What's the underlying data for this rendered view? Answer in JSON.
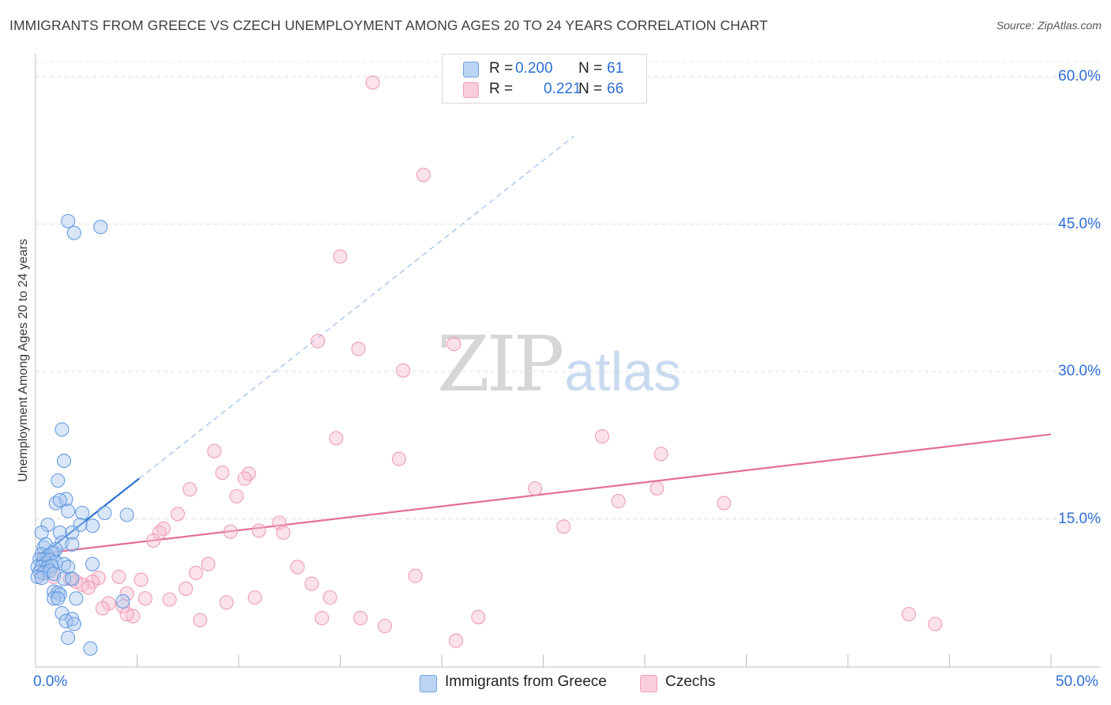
{
  "title": "IMMIGRANTS FROM GREECE VS CZECH UNEMPLOYMENT AMONG AGES 20 TO 24 YEARS CORRELATION CHART",
  "source": "Source: ZipAtlas.com",
  "watermark": {
    "zip": "ZIP",
    "atlas": "atlas"
  },
  "colors": {
    "greece_fill": "#a9c8f0",
    "greece_stroke": "#5b93dd",
    "greece_line": "#2f6fcf",
    "czech_fill": "#f6bfd0",
    "czech_stroke": "#ec93b1",
    "czech_line": "#e2709a",
    "tick_text": "#2e6fd6"
  },
  "legend": {
    "greece": {
      "r_label": "R =",
      "r_value": "0.200",
      "n_label": "N =",
      "n_value": "61"
    },
    "czech": {
      "r_label": "R =",
      "r_value": "0.221",
      "n_label": "N =",
      "n_value": "66"
    }
  },
  "chart_data": {
    "type": "scatter",
    "title": "IMMIGRANTS FROM GREECE VS CZECH UNEMPLOYMENT AMONG AGES 20 TO 24 YEARS CORRELATION CHART",
    "xlabel": "",
    "ylabel": "Unemployment Among Ages 20 to 24 years",
    "xlim": [
      0,
      50
    ],
    "ylim": [
      0,
      60
    ],
    "x_tick_labels": {
      "min": "0.0%",
      "max": "50.0%"
    },
    "y_ticks": [
      {
        "value": 15,
        "label": "15.0%"
      },
      {
        "value": 30,
        "label": "30.0%"
      },
      {
        "value": 45,
        "label": "45.0%"
      },
      {
        "value": 60,
        "label": "60.0%"
      }
    ],
    "grid": true,
    "legend_position": "bottom",
    "series": [
      {
        "name": "Immigrants from Greece",
        "key": "greece",
        "r": 0.2,
        "n": 61,
        "trend": {
          "x0": 0,
          "y0": 10.8,
          "x1": 5.1,
          "y1": 19.1,
          "dashed_to_x": 26.5
        },
        "points": [
          [
            1.6,
            45.3
          ],
          [
            1.9,
            44.1
          ],
          [
            3.2,
            44.7
          ],
          [
            1.3,
            24.1
          ],
          [
            1.4,
            20.9
          ],
          [
            1.1,
            18.9
          ],
          [
            1.0,
            16.6
          ],
          [
            1.5,
            17.0
          ],
          [
            1.2,
            16.9
          ],
          [
            1.6,
            15.8
          ],
          [
            2.3,
            15.6
          ],
          [
            3.4,
            15.6
          ],
          [
            4.5,
            15.4
          ],
          [
            0.6,
            14.4
          ],
          [
            2.8,
            14.3
          ],
          [
            2.2,
            14.4
          ],
          [
            0.3,
            13.6
          ],
          [
            1.2,
            13.6
          ],
          [
            1.8,
            13.6
          ],
          [
            0.4,
            12.1
          ],
          [
            0.5,
            12.4
          ],
          [
            1.3,
            12.6
          ],
          [
            1.8,
            12.4
          ],
          [
            0.9,
            11.6
          ],
          [
            1.0,
            11.9
          ],
          [
            0.3,
            11.4
          ],
          [
            0.6,
            11.2
          ],
          [
            0.8,
            11.5
          ],
          [
            0.4,
            10.9
          ],
          [
            0.2,
            10.9
          ],
          [
            0.5,
            10.5
          ],
          [
            0.7,
            10.8
          ],
          [
            1.0,
            10.6
          ],
          [
            1.4,
            10.4
          ],
          [
            0.1,
            10.1
          ],
          [
            0.3,
            10.1
          ],
          [
            0.6,
            10.1
          ],
          [
            0.8,
            10.2
          ],
          [
            1.6,
            10.1
          ],
          [
            2.8,
            10.4
          ],
          [
            0.2,
            9.6
          ],
          [
            0.4,
            9.5
          ],
          [
            0.7,
            9.7
          ],
          [
            0.1,
            9.1
          ],
          [
            0.3,
            9.0
          ],
          [
            0.9,
            9.4
          ],
          [
            1.4,
            8.9
          ],
          [
            1.8,
            8.9
          ],
          [
            0.9,
            7.6
          ],
          [
            1.1,
            7.5
          ],
          [
            1.2,
            7.3
          ],
          [
            0.9,
            6.9
          ],
          [
            1.1,
            6.9
          ],
          [
            2.0,
            6.9
          ],
          [
            1.3,
            5.4
          ],
          [
            1.8,
            4.8
          ],
          [
            1.5,
            4.6
          ],
          [
            1.9,
            4.3
          ],
          [
            4.3,
            6.6
          ],
          [
            1.6,
            2.9
          ],
          [
            2.7,
            1.8
          ]
        ]
      },
      {
        "name": "Czechs",
        "key": "czech",
        "r": 0.221,
        "n": 66,
        "trend": {
          "x0": 0,
          "y0": 11.4,
          "x1": 50,
          "y1": 23.6
        },
        "points": [
          [
            16.6,
            59.4
          ],
          [
            19.1,
            50.0
          ],
          [
            15.0,
            41.7
          ],
          [
            13.9,
            33.1
          ],
          [
            15.9,
            32.3
          ],
          [
            20.6,
            32.8
          ],
          [
            18.1,
            30.1
          ],
          [
            14.8,
            23.2
          ],
          [
            27.9,
            23.4
          ],
          [
            17.9,
            21.1
          ],
          [
            8.8,
            21.9
          ],
          [
            30.8,
            21.6
          ],
          [
            9.2,
            19.7
          ],
          [
            10.5,
            19.6
          ],
          [
            10.3,
            19.1
          ],
          [
            7.6,
            18.0
          ],
          [
            24.6,
            18.1
          ],
          [
            30.6,
            18.1
          ],
          [
            9.9,
            17.3
          ],
          [
            28.7,
            16.8
          ],
          [
            33.9,
            16.6
          ],
          [
            7.0,
            15.5
          ],
          [
            12.0,
            14.6
          ],
          [
            26.0,
            14.2
          ],
          [
            6.3,
            14.0
          ],
          [
            6.1,
            13.6
          ],
          [
            9.6,
            13.7
          ],
          [
            11.0,
            13.8
          ],
          [
            12.2,
            13.6
          ],
          [
            5.8,
            12.8
          ],
          [
            8.5,
            10.4
          ],
          [
            12.9,
            10.1
          ],
          [
            7.9,
            9.5
          ],
          [
            18.7,
            9.2
          ],
          [
            4.1,
            9.1
          ],
          [
            3.1,
            9.0
          ],
          [
            5.2,
            8.8
          ],
          [
            2.0,
            8.6
          ],
          [
            2.8,
            8.6
          ],
          [
            0.9,
            9.1
          ],
          [
            0.3,
            9.4
          ],
          [
            0.6,
            9.8
          ],
          [
            1.7,
            8.9
          ],
          [
            2.3,
            8.3
          ],
          [
            2.6,
            8.0
          ],
          [
            7.4,
            7.9
          ],
          [
            13.6,
            8.4
          ],
          [
            4.5,
            7.4
          ],
          [
            5.4,
            6.9
          ],
          [
            6.6,
            6.8
          ],
          [
            3.6,
            6.4
          ],
          [
            4.3,
            6.1
          ],
          [
            9.4,
            6.5
          ],
          [
            10.8,
            7.0
          ],
          [
            14.5,
            7.0
          ],
          [
            4.8,
            5.1
          ],
          [
            4.5,
            5.3
          ],
          [
            8.1,
            4.7
          ],
          [
            14.1,
            4.9
          ],
          [
            16.0,
            4.9
          ],
          [
            21.8,
            5.0
          ],
          [
            17.2,
            4.1
          ],
          [
            20.7,
            2.6
          ],
          [
            43.0,
            5.3
          ],
          [
            44.3,
            4.3
          ],
          [
            3.3,
            5.9
          ]
        ]
      }
    ]
  },
  "bottom_legend": {
    "greece_label": "Immigrants from Greece",
    "czech_label": "Czechs"
  }
}
